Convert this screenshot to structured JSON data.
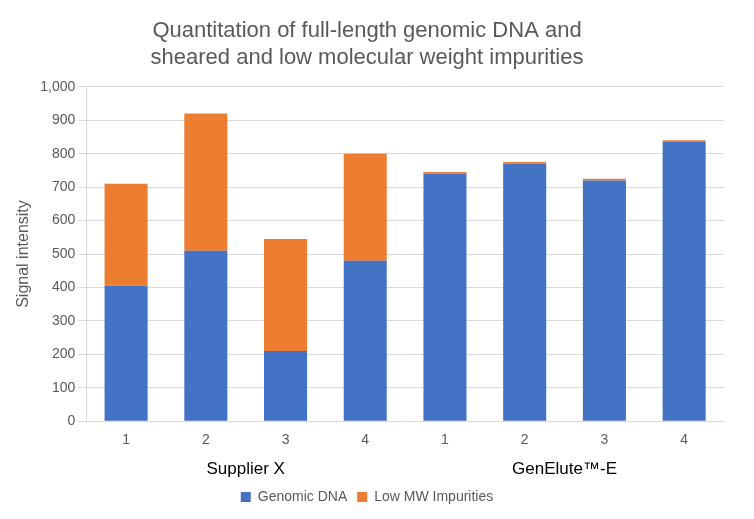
{
  "chart_data": {
    "type": "bar",
    "title": [
      "Quantitation of full-length genomic DNA and",
      "sheared and low molecular weight impurities"
    ],
    "y_label": "Signal intensity",
    "categories": [
      "1",
      "2",
      "3",
      "4",
      "1",
      "2",
      "3",
      "4"
    ],
    "category_groups": [
      "Supplier X",
      "Supplier X",
      "Supplier X",
      "Supplier X",
      "GenElute™-E",
      "GenElute™-E",
      "GenElute™-E",
      "GenElute™-E"
    ],
    "series": [
      {
        "name": "Genomic DNA",
        "color": "#4472c4",
        "values": [
          405,
          510,
          210,
          480,
          740,
          770,
          720,
          835
        ]
      },
      {
        "name": "Low MW Impurities",
        "color": "#ed7d31",
        "values": [
          305,
          410,
          335,
          320,
          5,
          5,
          5,
          5
        ]
      }
    ],
    "stacked": true,
    "ylim": [
      0,
      1000
    ],
    "yticks": [
      0,
      100,
      200,
      300,
      400,
      500,
      600,
      700,
      800,
      900,
      1000
    ],
    "grid": true,
    "legend": "bottom"
  }
}
